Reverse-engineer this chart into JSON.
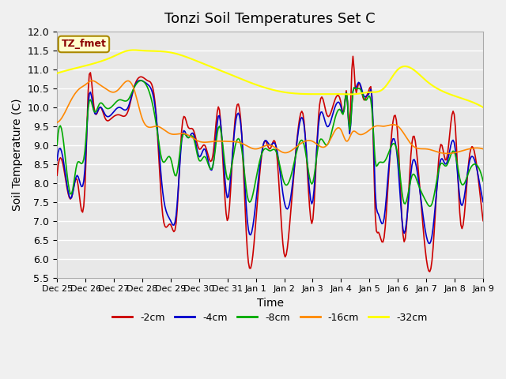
{
  "title": "Tonzi Soil Temperatures Set C",
  "xlabel": "Time",
  "ylabel": "Soil Temperature (C)",
  "ylim": [
    5.5,
    12.0
  ],
  "yticks": [
    5.5,
    6.0,
    6.5,
    7.0,
    7.5,
    8.0,
    8.5,
    9.0,
    9.5,
    10.0,
    10.5,
    11.0,
    11.5,
    12.0
  ],
  "xtick_labels": [
    "Dec 25",
    "Dec 26",
    "Dec 27",
    "Dec 28",
    "Dec 29",
    "Dec 30",
    "Dec 31",
    "Jan 1",
    "Jan 2",
    "Jan 3",
    "Jan 4",
    "Jan 5",
    "Jan 6",
    "Jan 7",
    "Jan 8",
    "Jan 9"
  ],
  "colors": {
    "-2cm": "#cc0000",
    "-4cm": "#0000cc",
    "-8cm": "#00aa00",
    "-16cm": "#ff8800",
    "-32cm": "#ffff00"
  },
  "legend_labels": [
    "-2cm",
    "-4cm",
    "-8cm",
    "-16cm",
    "-32cm"
  ],
  "annotation_text": "TZ_fmet",
  "annotation_color": "#8b0000",
  "annotation_bg": "#ffffcc",
  "annotation_border": "#aa8800",
  "background_color": "#e8e8e8",
  "grid_color": "#ffffff",
  "title_fontsize": 13,
  "label_fontsize": 10
}
